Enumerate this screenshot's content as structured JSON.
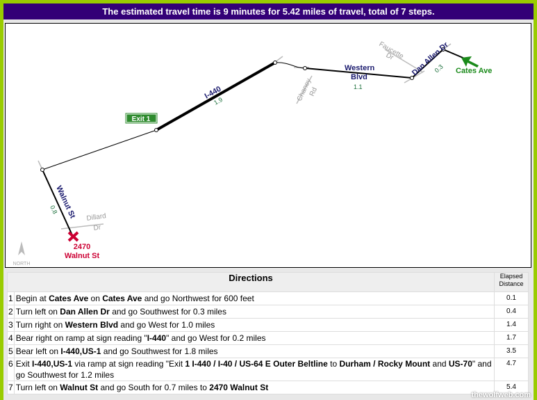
{
  "header": {
    "summary": "The estimated travel time is 9 minutes for 5.42 miles of travel, total of 7 steps."
  },
  "map": {
    "start_label": "Cates Ave",
    "end_label_line1": "2470",
    "end_label_line2": "Walnut St",
    "exit_sign": "Exit 1",
    "north_label": "NORTH",
    "roads": {
      "dan_allen": "Dan Allen Dr",
      "dan_allen_dist": "0.3",
      "western_1": "Western",
      "western_2": "Blvd",
      "western_dist": "1.1",
      "i440": "I-440",
      "i440_dist": "1.9",
      "walnut": "Walnut St",
      "walnut_dist": "0.8",
      "faucette_1": "Faucette",
      "faucette_2": "Dr",
      "chaney_1": "Chaney",
      "chaney_2": "Rd",
      "dillard_1": "Dillard",
      "dillard_2": "Dr"
    },
    "colors": {
      "route": "#000000",
      "start": "#1a8a1a",
      "end": "#cc0033",
      "road_label": "#1a1a6e",
      "dist_label": "#1a6e3a",
      "side_road": "#aaaaaa"
    }
  },
  "directions": {
    "header": "Directions",
    "elapsed_header": "Elapsed Distance",
    "steps": [
      {
        "num": "1",
        "parts": [
          [
            "Begin at ",
            0
          ],
          [
            "Cates Ave",
            1
          ],
          [
            " on ",
            0
          ],
          [
            "Cates Ave",
            1
          ],
          [
            " and go Northwest for 600 feet",
            0
          ]
        ],
        "elapsed": "0.1"
      },
      {
        "num": "2",
        "parts": [
          [
            "Turn left on ",
            0
          ],
          [
            "Dan Allen Dr",
            1
          ],
          [
            " and go Southwest for 0.3 miles",
            0
          ]
        ],
        "elapsed": "0.4"
      },
      {
        "num": "3",
        "parts": [
          [
            "Turn right on ",
            0
          ],
          [
            "Western Blvd",
            1
          ],
          [
            " and go West for 1.0 miles",
            0
          ]
        ],
        "elapsed": "1.4"
      },
      {
        "num": "4",
        "parts": [
          [
            "Bear right on ramp at sign reading \"",
            0
          ],
          [
            "I-440",
            1
          ],
          [
            "\" and go West for 0.2 miles",
            0
          ]
        ],
        "elapsed": "1.7"
      },
      {
        "num": "5",
        "parts": [
          [
            "Bear left on ",
            0
          ],
          [
            "I-440,US-1",
            1
          ],
          [
            " and go Southwest for 1.8 miles",
            0
          ]
        ],
        "elapsed": "3.5"
      },
      {
        "num": "6",
        "parts": [
          [
            "Exit ",
            0
          ],
          [
            "I-440,US-1",
            1
          ],
          [
            " via ramp at sign reading \"Exit ",
            0
          ],
          [
            "1 I-440 / I-40 / US-64 E Outer Beltline",
            1
          ],
          [
            " to ",
            0
          ],
          [
            "Durham / Rocky Mount",
            1
          ],
          [
            " and ",
            0
          ],
          [
            "US-70",
            1
          ],
          [
            "\" and go Southwest for 1.2 miles",
            0
          ]
        ],
        "elapsed": "4.7"
      },
      {
        "num": "7",
        "parts": [
          [
            "Turn left on ",
            0
          ],
          [
            "Walnut St",
            1
          ],
          [
            " and go South for 0.7 miles to ",
            0
          ],
          [
            "2470 Walnut St",
            1
          ]
        ],
        "elapsed": "5.4"
      }
    ]
  },
  "watermark": "thewolfweb.com"
}
